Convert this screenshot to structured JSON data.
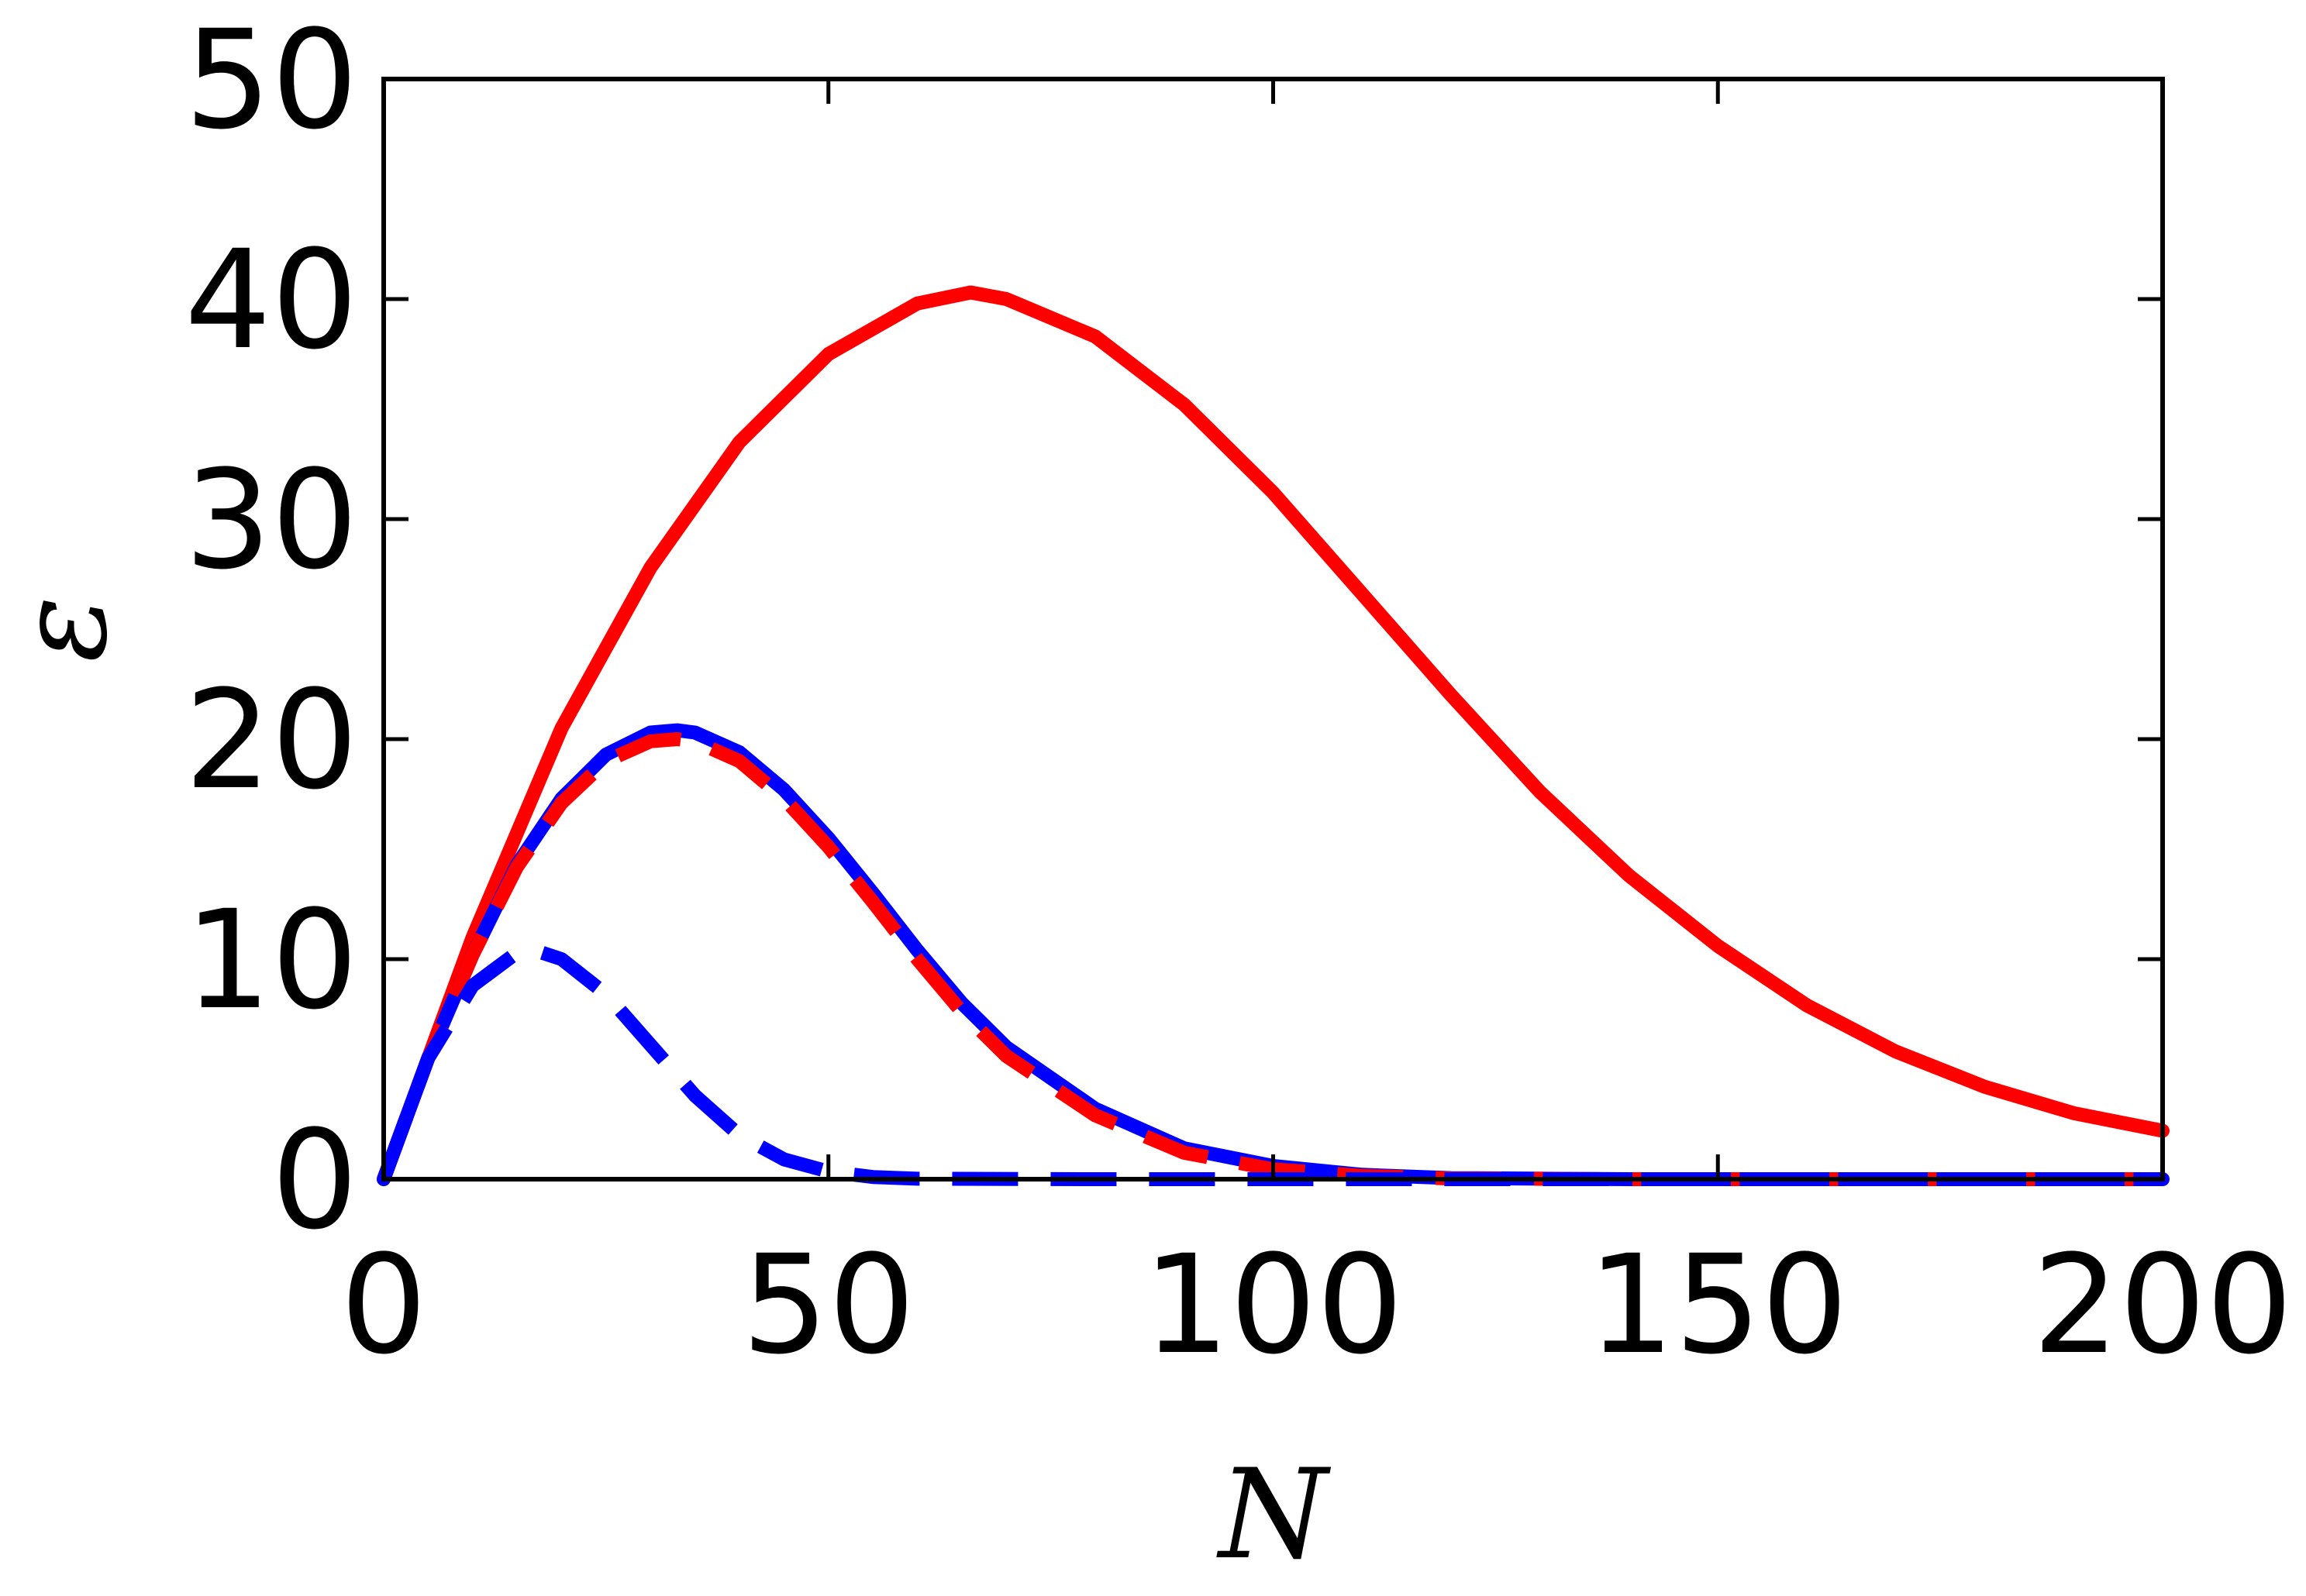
{
  "chart_data": {
    "type": "line",
    "title": "",
    "xlabel": "N",
    "ylabel": "ε",
    "xlim": [
      0,
      200
    ],
    "ylim": [
      0,
      50
    ],
    "xticks": [
      "0",
      "50",
      "100",
      "150",
      "200"
    ],
    "yticks": [
      "0",
      "10",
      "20",
      "30",
      "40",
      "50"
    ],
    "xtick_values": [
      0,
      50,
      100,
      150,
      200
    ],
    "ytick_values": [
      0,
      10,
      20,
      30,
      40,
      50
    ],
    "grid": false,
    "legend": "none",
    "series": [
      {
        "color": "#ff0000",
        "style": "solid",
        "x": [
          0,
          10,
          20,
          30,
          40,
          50,
          60,
          66,
          70,
          80,
          90,
          100,
          110,
          120,
          130,
          140,
          150,
          160,
          170,
          180,
          190,
          200
        ],
        "y": [
          0,
          11,
          20.5,
          27.8,
          33.5,
          37.5,
          39.8,
          40.3,
          40.0,
          38.3,
          35.2,
          31.2,
          26.6,
          22.0,
          17.6,
          13.8,
          10.6,
          7.9,
          5.8,
          4.2,
          3.0,
          2.2
        ]
      },
      {
        "color": "#0000ff",
        "style": "solid",
        "x": [
          0,
          5,
          10,
          15,
          20,
          25,
          30,
          33,
          35,
          40,
          45,
          50,
          55,
          60,
          65,
          70,
          80,
          90,
          100,
          110,
          120,
          140,
          160,
          180,
          200
        ],
        "y": [
          0,
          5.5,
          10.2,
          14.3,
          17.3,
          19.3,
          20.3,
          20.4,
          20.3,
          19.4,
          17.7,
          15.5,
          13.0,
          10.4,
          8.0,
          6.0,
          3.2,
          1.4,
          0.6,
          0.2,
          0.05,
          0,
          0,
          0,
          0
        ]
      },
      {
        "color": "#ff0000",
        "style": "dashed",
        "x": [
          0,
          5,
          10,
          15,
          20,
          25,
          30,
          33,
          35,
          40,
          45,
          50,
          55,
          60,
          65,
          70,
          80,
          90,
          100,
          110,
          120,
          140,
          160,
          180,
          200
        ],
        "y": [
          0,
          5.5,
          10.2,
          14.2,
          17.1,
          19.0,
          19.9,
          20.0,
          19.9,
          19.0,
          17.3,
          15.1,
          12.6,
          10.0,
          7.6,
          5.6,
          2.9,
          1.2,
          0.45,
          0.15,
          0.03,
          0,
          0,
          0,
          0
        ]
      },
      {
        "color": "#0000ff",
        "style": "dashed",
        "x": [
          0,
          5,
          10,
          15,
          17,
          20,
          25,
          30,
          35,
          40,
          45,
          50,
          55,
          60,
          80,
          100,
          150,
          200
        ],
        "y": [
          0,
          5.5,
          8.8,
          10.3,
          10.4,
          10.0,
          8.4,
          6.1,
          3.8,
          2.0,
          0.9,
          0.35,
          0.1,
          0.02,
          0,
          0,
          0,
          0
        ]
      }
    ]
  }
}
